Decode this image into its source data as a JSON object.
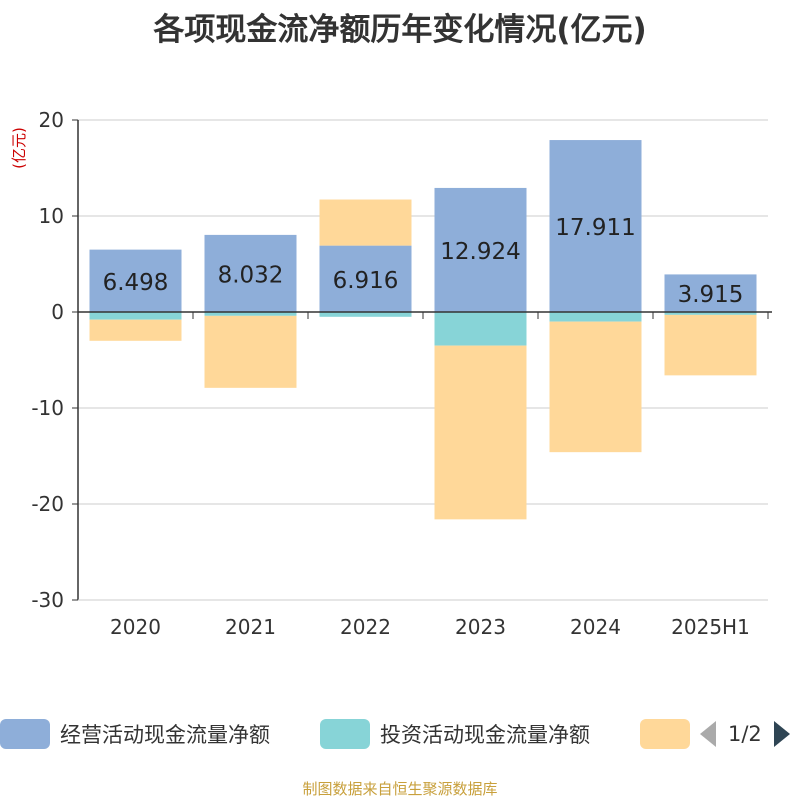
{
  "chart_data": {
    "type": "bar",
    "stacked": true,
    "title": "各项现金流净额历年变化情况(亿元)",
    "ylabel": "(亿元)",
    "categories": [
      "2020",
      "2021",
      "2022",
      "2023",
      "2024",
      "2025H1"
    ],
    "ylim": [
      -30,
      20
    ],
    "yticks": [
      20,
      10,
      0,
      -10,
      -20,
      -30
    ],
    "grid": true,
    "series": [
      {
        "name": "经营活动现金流量净额",
        "color": "#8eaed9",
        "values": [
          6.498,
          8.032,
          6.916,
          12.924,
          17.911,
          3.915
        ],
        "labels": [
          "6.498",
          "8.032",
          "6.916",
          "12.924",
          "17.911",
          "3.915"
        ]
      },
      {
        "name": "投资活动现金流量净额",
        "color": "#87d4d7",
        "values": [
          -0.8,
          -0.4,
          -0.5,
          -3.5,
          -1.0,
          -0.3
        ]
      },
      {
        "name": "",
        "color": "#ffd899",
        "values": [
          -2.2,
          -7.5,
          4.8,
          -18.1,
          -13.6,
          -6.3
        ]
      }
    ],
    "legend_position": "bottom"
  },
  "legend": {
    "pager_text": "1/2"
  },
  "source_text": "制图数据来自恒生聚源数据库"
}
